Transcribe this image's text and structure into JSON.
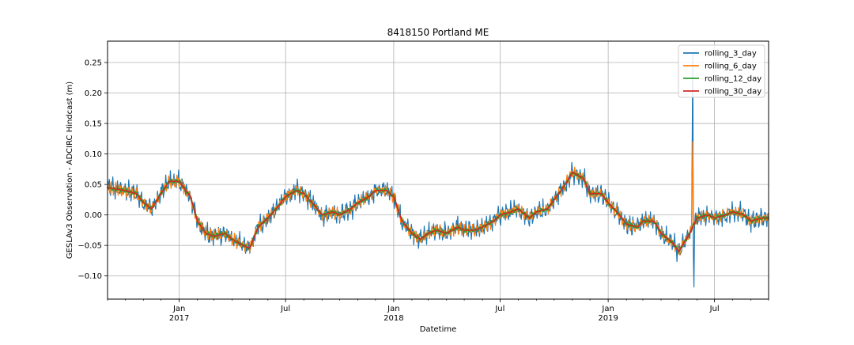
{
  "chart_data": {
    "type": "line",
    "title": "8418150 Portland ME",
    "xlabel": "Datetime",
    "ylabel": "GESLAv3 Observation - ADCIRC Hindcast (m)",
    "xlim": [
      "2016-09-01",
      "2019-10-01"
    ],
    "ylim": [
      -0.138,
      0.285
    ],
    "grid": true,
    "legend_position": "top-right",
    "x_ticks": [
      {
        "date": "2017-01-01",
        "label": "Jan",
        "sublabel": "2017"
      },
      {
        "date": "2017-07-01",
        "label": "Jul",
        "sublabel": ""
      },
      {
        "date": "2018-01-01",
        "label": "Jan",
        "sublabel": "2018"
      },
      {
        "date": "2018-07-01",
        "label": "Jul",
        "sublabel": ""
      },
      {
        "date": "2019-01-01",
        "label": "Jan",
        "sublabel": "2019"
      },
      {
        "date": "2019-07-01",
        "label": "Jul",
        "sublabel": ""
      }
    ],
    "y_ticks": [
      -0.1,
      -0.05,
      0.0,
      0.05,
      0.1,
      0.15,
      0.2,
      0.25
    ],
    "y_tick_labels": [
      "−0.10",
      "−0.05",
      "0.00",
      "0.05",
      "0.10",
      "0.15",
      "0.20",
      "0.25"
    ],
    "series": [
      {
        "name": "rolling_3_day",
        "color": "#1f77b4",
        "width": 1.2,
        "noise": 0.014
      },
      {
        "name": "rolling_6_day",
        "color": "#ff7f0e",
        "width": 1.3,
        "noise": 0.008
      },
      {
        "name": "rolling_12_day",
        "color": "#2ca02c",
        "width": 2.0,
        "noise": 0.0025
      },
      {
        "name": "rolling_30_day",
        "color": "#d62728",
        "width": 1.6,
        "noise": 0.0
      }
    ],
    "trend": {
      "x": [
        "2016-09-01",
        "2016-10-01",
        "2016-10-20",
        "2016-11-01",
        "2016-11-15",
        "2016-12-01",
        "2016-12-15",
        "2017-01-01",
        "2017-01-20",
        "2017-02-01",
        "2017-02-15",
        "2017-03-01",
        "2017-03-20",
        "2017-04-01",
        "2017-04-20",
        "2017-05-01",
        "2017-05-15",
        "2017-06-01",
        "2017-06-15",
        "2017-07-01",
        "2017-07-20",
        "2017-08-01",
        "2017-08-20",
        "2017-09-01",
        "2017-09-20",
        "2017-10-01",
        "2017-10-20",
        "2017-11-01",
        "2017-11-20",
        "2017-12-01",
        "2017-12-20",
        "2018-01-01",
        "2018-01-15",
        "2018-02-01",
        "2018-02-15",
        "2018-03-01",
        "2018-03-15",
        "2018-04-01",
        "2018-04-20",
        "2018-05-01",
        "2018-05-20",
        "2018-06-01",
        "2018-06-20",
        "2018-07-01",
        "2018-07-20",
        "2018-08-01",
        "2018-08-20",
        "2018-09-01",
        "2018-09-20",
        "2018-10-01",
        "2018-10-20",
        "2018-11-01",
        "2018-11-20",
        "2018-12-01",
        "2018-12-20",
        "2019-01-01",
        "2019-01-20",
        "2019-02-01",
        "2019-02-20",
        "2019-03-01",
        "2019-03-20",
        "2019-04-01",
        "2019-04-20",
        "2019-05-01",
        "2019-05-20",
        "2019-06-01",
        "2019-06-20",
        "2019-07-01",
        "2019-07-20",
        "2019-08-01",
        "2019-08-20",
        "2019-09-01",
        "2019-09-20",
        "2019-10-01"
      ],
      "y": [
        0.045,
        0.04,
        0.035,
        0.02,
        0.01,
        0.035,
        0.055,
        0.055,
        0.03,
        -0.01,
        -0.03,
        -0.035,
        -0.03,
        -0.04,
        -0.05,
        -0.055,
        -0.02,
        -0.005,
        0.01,
        0.03,
        0.04,
        0.035,
        0.015,
        0.0,
        0.005,
        0.0,
        0.01,
        0.02,
        0.03,
        0.04,
        0.04,
        0.03,
        -0.01,
        -0.03,
        -0.04,
        -0.03,
        -0.025,
        -0.03,
        -0.02,
        -0.025,
        -0.025,
        -0.02,
        -0.01,
        0.0,
        0.005,
        0.01,
        -0.005,
        0.005,
        0.01,
        0.025,
        0.05,
        0.07,
        0.06,
        0.035,
        0.035,
        0.02,
        0.0,
        -0.015,
        -0.02,
        -0.01,
        -0.01,
        -0.03,
        -0.045,
        -0.06,
        -0.03,
        -0.005,
        0.0,
        -0.005,
        0.0,
        0.005,
        0.0,
        -0.01,
        -0.005,
        -0.005
      ]
    },
    "spikes": [
      {
        "date": "2019-05-25",
        "value": 0.265,
        "series": "rolling_3_day"
      },
      {
        "date": "2019-05-27",
        "value": -0.118,
        "series": "rolling_3_day"
      },
      {
        "date": "2019-05-25",
        "value": 0.12,
        "series": "rolling_6_day"
      }
    ]
  }
}
